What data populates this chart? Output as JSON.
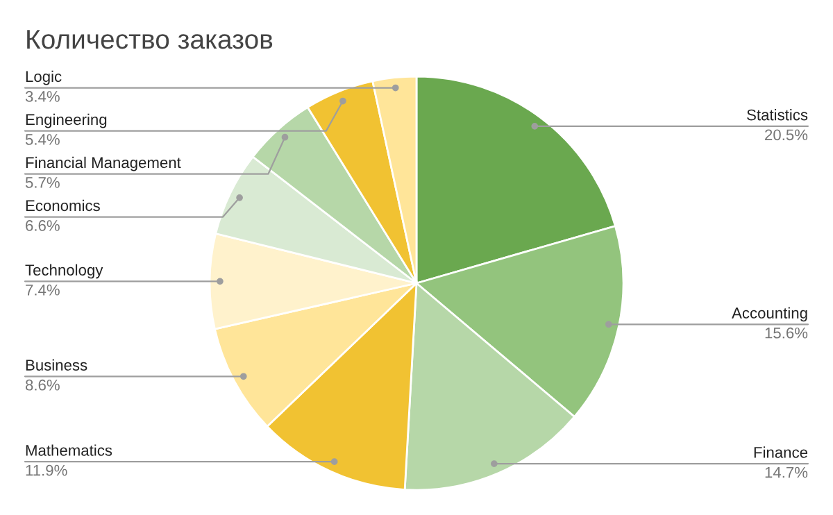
{
  "chart_data": {
    "type": "pie",
    "title": "Количество заказов",
    "categories": [
      "Statistics",
      "Accounting",
      "Finance",
      "Mathematics",
      "Business",
      "Technology",
      "Economics",
      "Financial Management",
      "Engineering",
      "Logic"
    ],
    "values": [
      20.5,
      15.6,
      14.7,
      11.9,
      8.6,
      7.4,
      6.6,
      5.7,
      5.4,
      3.4
    ],
    "value_labels": [
      "20.5%",
      "15.6%",
      "14.7%",
      "11.9%",
      "8.6%",
      "7.4%",
      "6.6%",
      "5.7%",
      "5.4%",
      "3.4%"
    ],
    "colors": [
      "#6aa84f",
      "#93c47d",
      "#b6d7a8",
      "#f1c232",
      "#ffe599",
      "#fff2cc",
      "#d9ead3",
      "#b6d7a8",
      "#f1c232",
      "#ffe599"
    ]
  }
}
